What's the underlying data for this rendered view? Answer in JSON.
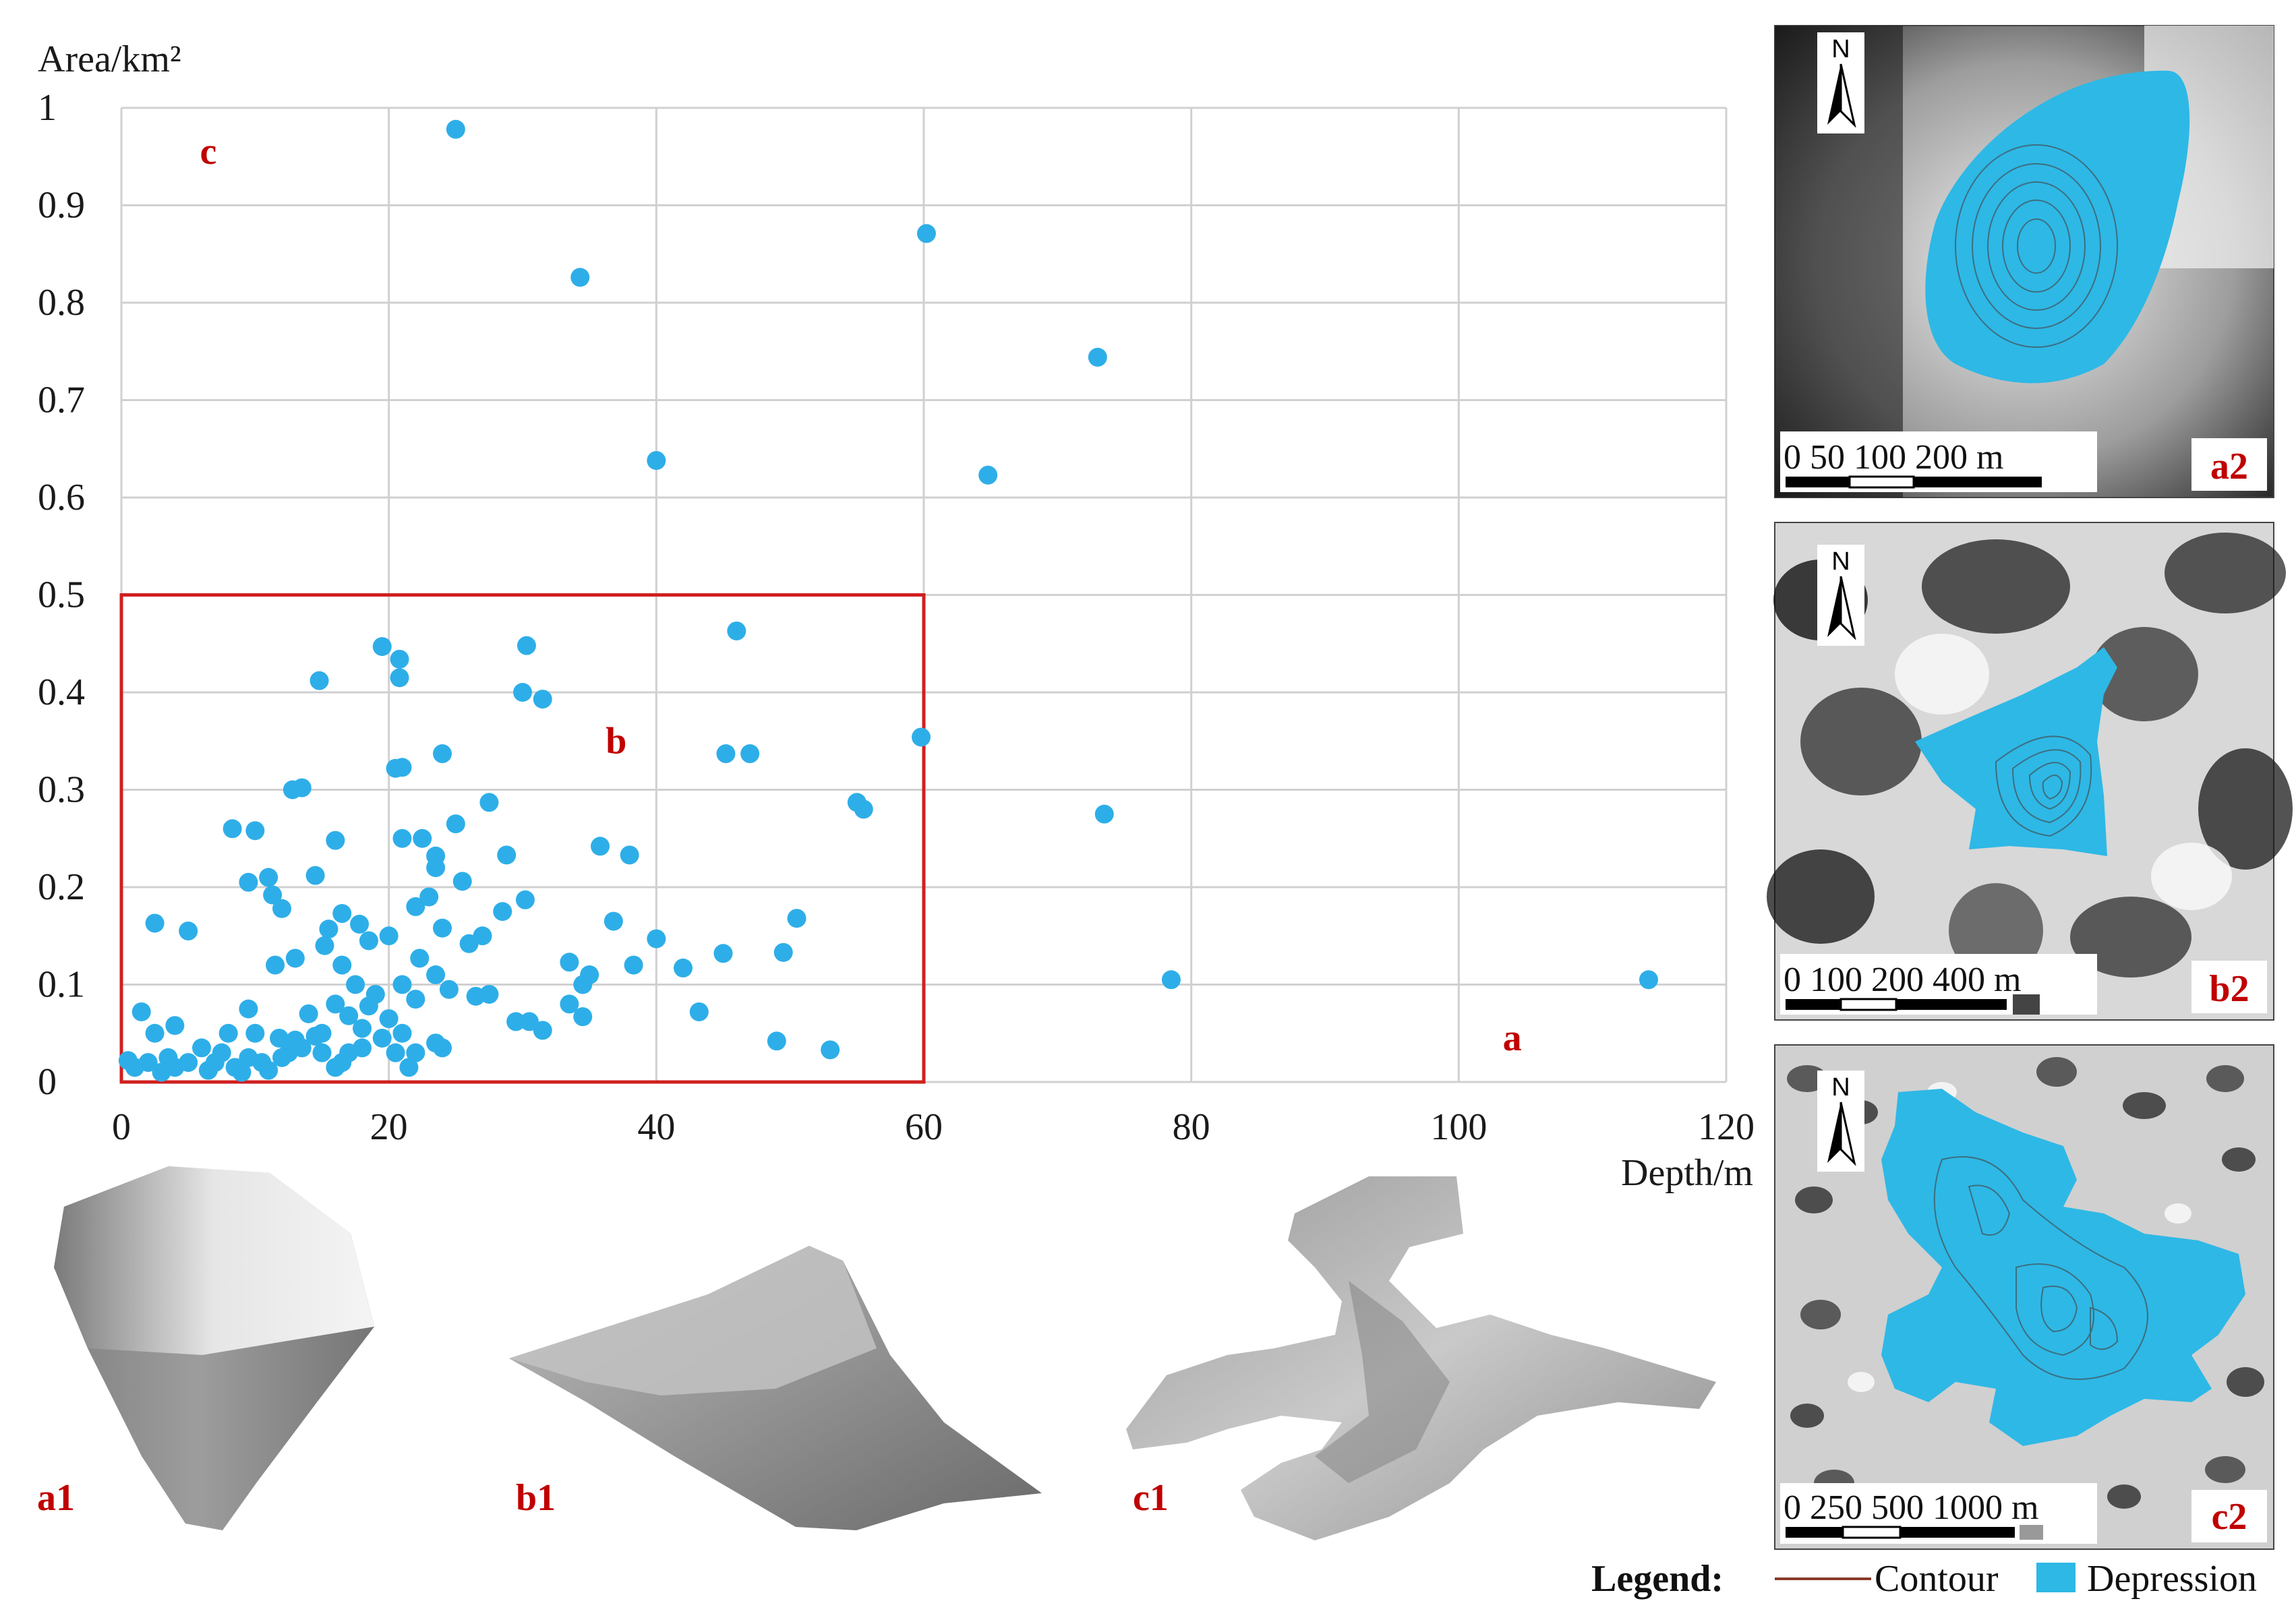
{
  "chart_data": {
    "type": "scatter",
    "ylabel": "Area/km²",
    "xlabel": "Depth/m",
    "xlim": [
      0,
      120
    ],
    "ylim": [
      0,
      1
    ],
    "x_ticks": [
      "0",
      "20",
      "40",
      "60",
      "80",
      "100",
      "120"
    ],
    "y_ticks": [
      "0",
      "0.1",
      "0.2",
      "0.3",
      "0.4",
      "0.5",
      "0.6",
      "0.7",
      "0.8",
      "0.9",
      "1"
    ],
    "grid": true,
    "marker_color": "#2eaee8",
    "highlight_box": {
      "x": [
        0,
        60
      ],
      "y": [
        0,
        0.5
      ],
      "color": "#d02020"
    },
    "region_labels": [
      {
        "text": "a",
        "x": 104,
        "y": 0.045
      },
      {
        "text": "b",
        "x": 37,
        "y": 0.35
      },
      {
        "text": "c",
        "x": 6.5,
        "y": 0.955
      }
    ],
    "points": [
      [
        25,
        0.978
      ],
      [
        34.3,
        0.826
      ],
      [
        60.2,
        0.871
      ],
      [
        73,
        0.744
      ],
      [
        40,
        0.638
      ],
      [
        64.8,
        0.623
      ],
      [
        46,
        0.463
      ],
      [
        30.3,
        0.448
      ],
      [
        19.5,
        0.447
      ],
      [
        20.8,
        0.434
      ],
      [
        20.8,
        0.415
      ],
      [
        14.8,
        0.412
      ],
      [
        30,
        0.4
      ],
      [
        31.5,
        0.393
      ],
      [
        59.8,
        0.354
      ],
      [
        24,
        0.337
      ],
      [
        45.2,
        0.337
      ],
      [
        47,
        0.337
      ],
      [
        21,
        0.323
      ],
      [
        20.5,
        0.322
      ],
      [
        13.5,
        0.302
      ],
      [
        12.8,
        0.3
      ],
      [
        27.5,
        0.287
      ],
      [
        55,
        0.287
      ],
      [
        55.5,
        0.28
      ],
      [
        73.5,
        0.275
      ],
      [
        25,
        0.265
      ],
      [
        8.3,
        0.26
      ],
      [
        10,
        0.258
      ],
      [
        16,
        0.248
      ],
      [
        21,
        0.25
      ],
      [
        22.5,
        0.25
      ],
      [
        35.8,
        0.242
      ],
      [
        38,
        0.233
      ],
      [
        28.8,
        0.233
      ],
      [
        23.5,
        0.232
      ],
      [
        23.5,
        0.22
      ],
      [
        14.5,
        0.212
      ],
      [
        11,
        0.21
      ],
      [
        9.5,
        0.205
      ],
      [
        25.5,
        0.206
      ],
      [
        11.3,
        0.192
      ],
      [
        30.2,
        0.187
      ],
      [
        22,
        0.18
      ],
      [
        23,
        0.19
      ],
      [
        12,
        0.178
      ],
      [
        28.5,
        0.175
      ],
      [
        50.5,
        0.168
      ],
      [
        16.5,
        0.173
      ],
      [
        36.8,
        0.165
      ],
      [
        17.8,
        0.162
      ],
      [
        2.5,
        0.163
      ],
      [
        24,
        0.158
      ],
      [
        15.5,
        0.157
      ],
      [
        5,
        0.155
      ],
      [
        20,
        0.15
      ],
      [
        27,
        0.15
      ],
      [
        40,
        0.147
      ],
      [
        18.5,
        0.145
      ],
      [
        26,
        0.142
      ],
      [
        15.2,
        0.14
      ],
      [
        45,
        0.132
      ],
      [
        49.5,
        0.133
      ],
      [
        13,
        0.127
      ],
      [
        22.3,
        0.127
      ],
      [
        33.5,
        0.123
      ],
      [
        38.3,
        0.12
      ],
      [
        42,
        0.117
      ],
      [
        11.5,
        0.12
      ],
      [
        16.5,
        0.12
      ],
      [
        23.5,
        0.11
      ],
      [
        21,
        0.1
      ],
      [
        35,
        0.11
      ],
      [
        34.5,
        0.1
      ],
      [
        78.5,
        0.105
      ],
      [
        114.2,
        0.105
      ],
      [
        17.5,
        0.1
      ],
      [
        24.5,
        0.095
      ],
      [
        27.5,
        0.09
      ],
      [
        19,
        0.09
      ],
      [
        26.5,
        0.088
      ],
      [
        22,
        0.085
      ],
      [
        16,
        0.08
      ],
      [
        18.5,
        0.078
      ],
      [
        33.5,
        0.08
      ],
      [
        9.5,
        0.075
      ],
      [
        43.2,
        0.072
      ],
      [
        34.5,
        0.067
      ],
      [
        29.5,
        0.062
      ],
      [
        30.5,
        0.062
      ],
      [
        1.5,
        0.072
      ],
      [
        14,
        0.07
      ],
      [
        17,
        0.068
      ],
      [
        20,
        0.065
      ],
      [
        31.5,
        0.053
      ],
      [
        4,
        0.058
      ],
      [
        2.5,
        0.05
      ],
      [
        15,
        0.05
      ],
      [
        18,
        0.055
      ],
      [
        21,
        0.05
      ],
      [
        49,
        0.042
      ],
      [
        53,
        0.033
      ],
      [
        8,
        0.05
      ],
      [
        10,
        0.05
      ],
      [
        11.8,
        0.045
      ],
      [
        13,
        0.043
      ],
      [
        14.5,
        0.047
      ],
      [
        19.5,
        0.045
      ],
      [
        23.5,
        0.04
      ],
      [
        22,
        0.03
      ],
      [
        17,
        0.03
      ],
      [
        16.5,
        0.02
      ],
      [
        12,
        0.025
      ],
      [
        10.5,
        0.02
      ],
      [
        7.5,
        0.03
      ],
      [
        6,
        0.035
      ],
      [
        5,
        0.02
      ],
      [
        4,
        0.015
      ],
      [
        3.5,
        0.025
      ],
      [
        2,
        0.02
      ],
      [
        1,
        0.015
      ],
      [
        0.5,
        0.022
      ],
      [
        3,
        0.01
      ],
      [
        6.5,
        0.012
      ],
      [
        8.5,
        0.015
      ],
      [
        9,
        0.01
      ],
      [
        11,
        0.012
      ],
      [
        13.5,
        0.035
      ],
      [
        15,
        0.03
      ],
      [
        16,
        0.015
      ],
      [
        18,
        0.035
      ],
      [
        20.5,
        0.03
      ],
      [
        21.5,
        0.015
      ],
      [
        24,
        0.035
      ],
      [
        7,
        0.02
      ],
      [
        9.5,
        0.025
      ],
      [
        12.5,
        0.03
      ]
    ]
  },
  "panels": {
    "a2": {
      "label": "a2",
      "scale_text": "0  50  100      200 m"
    },
    "b2": {
      "label": "b2",
      "scale_text": "0 100 200      400 m"
    },
    "c2": {
      "label": "c2",
      "scale_text": "0 250 500  1000 m"
    },
    "north": "N"
  },
  "shapes": {
    "a1": "a1",
    "b1": "b1",
    "c1": "c1"
  },
  "legend": {
    "title": "Legend:",
    "contour": "Contour",
    "depression": "Depression",
    "contour_color": "#8b3a2a",
    "depression_color": "#2eb8e6"
  }
}
